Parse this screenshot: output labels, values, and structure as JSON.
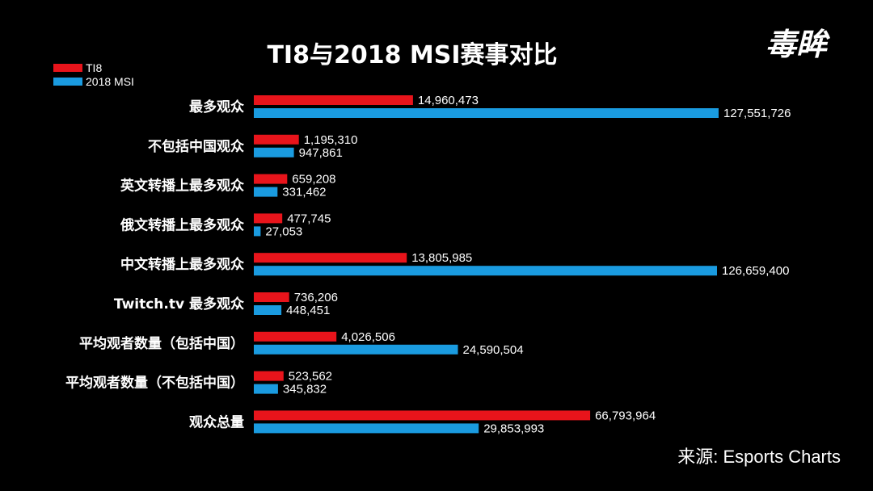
{
  "logo": {
    "text": "毒眸"
  },
  "chart_data": {
    "type": "bar",
    "orientation": "horizontal",
    "title": "TI8与2018 MSI赛事对比",
    "categories": [
      "最多观众",
      "不包括中国观众",
      "英文转播上最多观众",
      "俄文转播上最多观众",
      "中文转播上最多观众",
      "Twitch.tv 最多观众",
      "平均观者数量（包括中国）",
      "平均观者数量（不包括中国）",
      "观众总量"
    ],
    "series": [
      {
        "name": "TI8",
        "color": "#e8141b",
        "values": [
          14960473,
          1195310,
          659208,
          477745,
          13805985,
          736206,
          4026506,
          523562,
          66793964
        ],
        "labels": [
          "14,960,473",
          "1,195,310",
          "659,208",
          "477,745",
          "13,805,985",
          "736,206",
          "4,026,506",
          "523,562",
          "66,793,964"
        ]
      },
      {
        "name": "2018 MSI",
        "color": "#1a9be0",
        "values": [
          127551726,
          947861,
          331462,
          27053,
          126659400,
          448451,
          24590504,
          345832,
          29853993
        ],
        "labels": [
          "127,551,726",
          "947,861",
          "331,462",
          "27,053",
          "126,659,400",
          "448,451",
          "24,590,504",
          "345,832",
          "29,853,993"
        ]
      }
    ],
    "scale": "nonlinear",
    "grid": false,
    "legend_position": "top-left",
    "source": "来源:  Esports Charts"
  }
}
